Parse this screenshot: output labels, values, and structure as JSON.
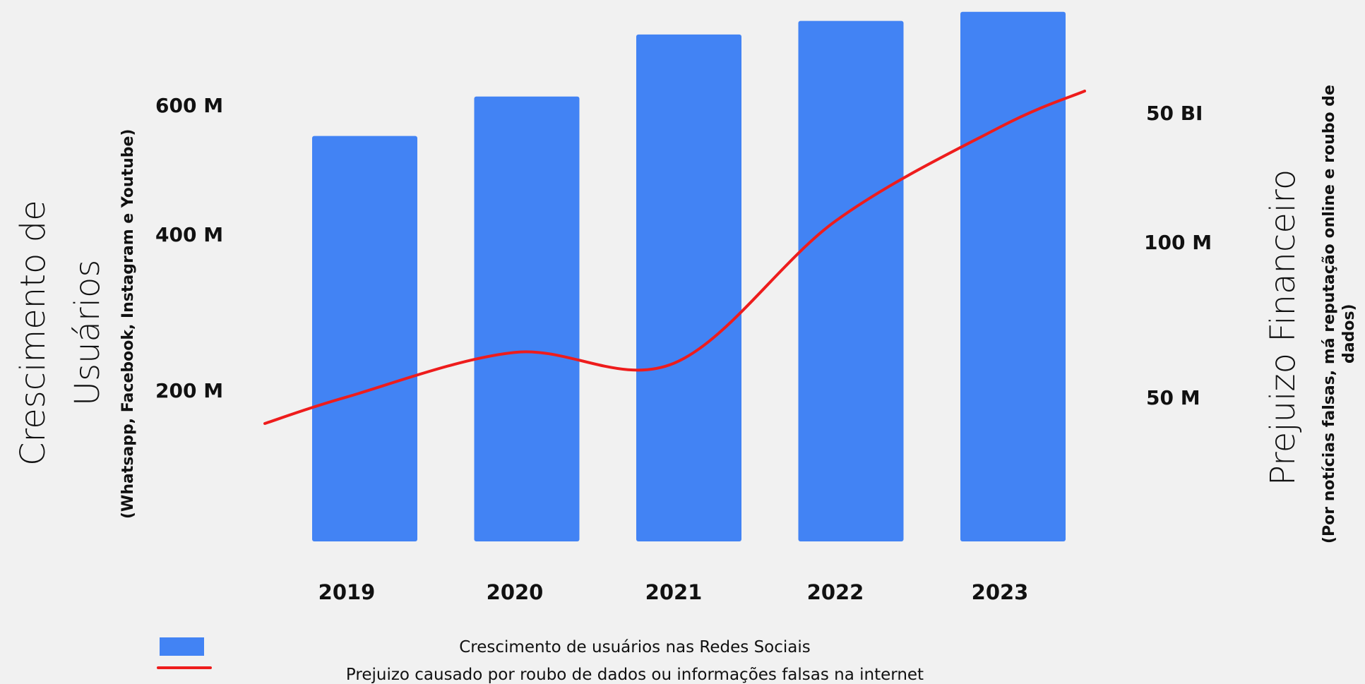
{
  "chart_data": {
    "type": "bar",
    "categories": [
      "2019",
      "2020",
      "2021",
      "2022",
      "2023"
    ],
    "series": [
      {
        "name": "Crescimento de usuários nas Redes Sociais",
        "type": "bar",
        "axis": "left",
        "color": "#4283f4",
        "values": [
          627,
          688,
          784,
          805,
          819
        ]
      },
      {
        "name": "Prejuizo causado por roubo de dados ou informações falsas na internet",
        "type": "line",
        "axis": "right",
        "color": "#ee1c1c",
        "values": [
          44,
          62,
          57,
          170,
          350
        ]
      }
    ],
    "y_left": {
      "title": "Crescimento de Usuários",
      "subtitle": "(Whatsapp, Facebook, Instagram e Youtube)",
      "ticks": [
        {
          "value": 200,
          "label": "200 M"
        },
        {
          "value": 400,
          "label": "400 M"
        },
        {
          "value": 600,
          "label": "600 M"
        }
      ],
      "range": [
        0,
        840
      ]
    },
    "y_right": {
      "title": "Prejuizo Financeiro",
      "subtitle": "(Por notícias falsas, má reputação online e roubo de dados)",
      "ticks": [
        {
          "value": 50,
          "label": "50 M"
        },
        {
          "value": 100,
          "label": "100 M"
        },
        {
          "value": 50,
          "label": "50 BI"
        }
      ]
    },
    "legend_position": "bottom",
    "grid": false
  }
}
